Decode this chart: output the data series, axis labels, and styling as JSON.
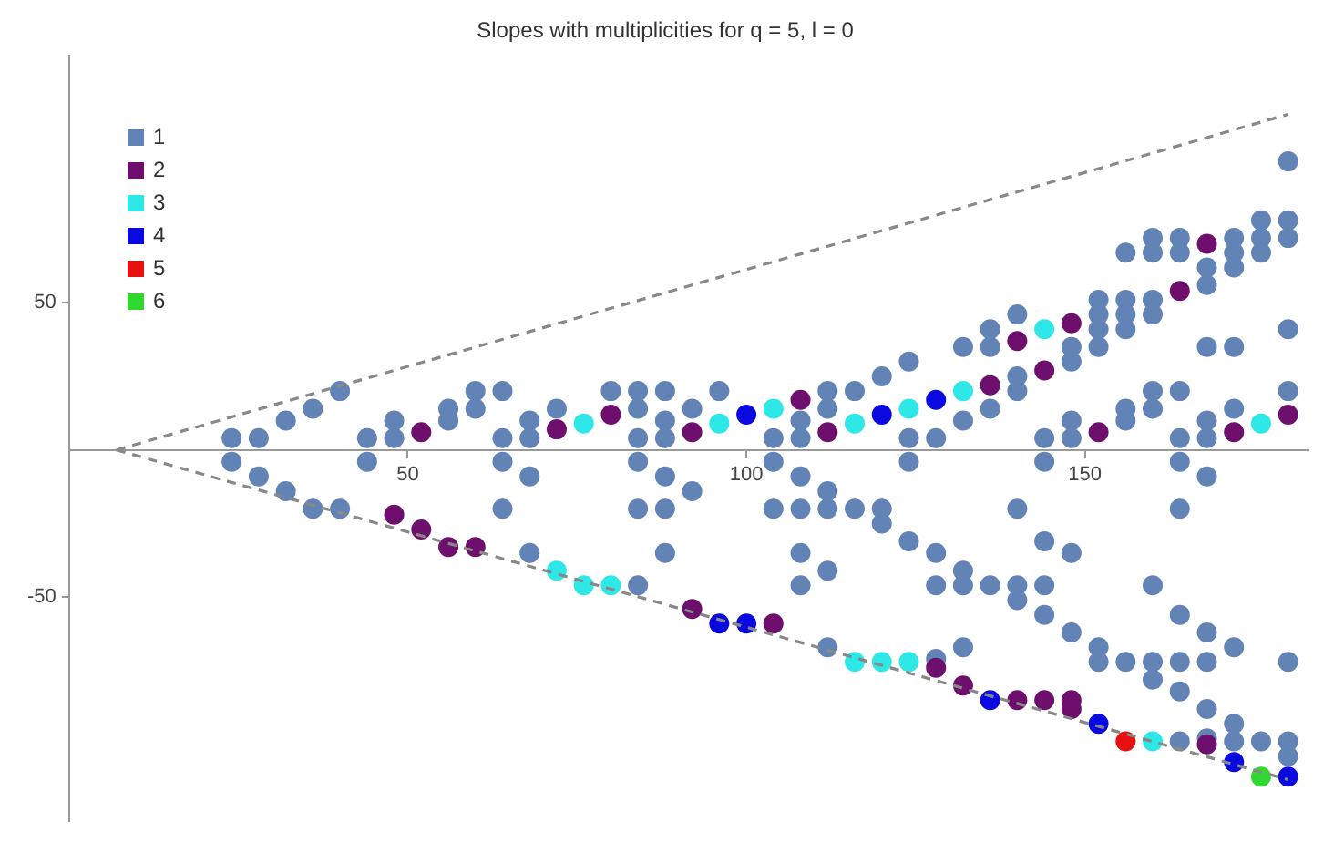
{
  "chart_data": {
    "type": "scatter",
    "title": "Slopes with multiplicities for q = 5, l = 0",
    "xlim": [
      0,
      183
    ],
    "xticks": [
      50,
      100,
      150
    ],
    "ylim": [
      -126,
      134
    ],
    "yticks": [
      -50,
      50
    ],
    "grid": false,
    "legend": "top left",
    "marker": "circle",
    "series": [
      {
        "name": "1",
        "color": "#6283b5",
        "x": [
          24,
          24,
          28,
          28,
          32,
          32,
          36,
          36,
          40,
          40,
          44,
          44,
          48,
          48,
          56,
          56,
          60,
          60,
          64,
          64,
          64,
          64,
          68,
          68,
          68,
          68,
          72,
          80,
          84,
          84,
          84,
          84,
          84,
          84,
          88,
          88,
          88,
          88,
          88,
          88,
          92,
          92,
          96,
          104,
          104,
          104,
          108,
          108,
          108,
          108,
          108,
          108,
          112,
          112,
          112,
          112,
          112,
          112,
          116,
          116,
          120,
          120,
          120,
          124,
          124,
          124,
          124,
          128,
          128,
          128,
          128,
          132,
          132,
          132,
          132,
          132,
          136,
          136,
          136,
          136,
          140,
          140,
          140,
          140,
          140,
          140,
          144,
          144,
          144,
          144,
          144,
          148,
          148,
          148,
          148,
          148,
          148,
          152,
          152,
          152,
          152,
          152,
          152,
          156,
          156,
          156,
          156,
          156,
          156,
          156,
          160,
          160,
          160,
          160,
          160,
          160,
          160,
          160,
          160,
          164,
          164,
          164,
          164,
          164,
          164,
          164,
          164,
          164,
          164,
          168,
          168,
          168,
          168,
          168,
          168,
          168,
          168,
          168,
          168,
          172,
          172,
          172,
          172,
          172,
          172,
          172,
          172,
          176,
          176,
          176,
          176,
          180,
          180,
          180,
          180,
          180,
          180,
          180,
          180
        ],
        "values": [
          4,
          -4,
          4,
          -9,
          10,
          -14,
          14,
          -20,
          20,
          -20,
          4,
          -4,
          4,
          10,
          10,
          14,
          14,
          20,
          20,
          4,
          -4,
          -20,
          10,
          4,
          -9,
          -35,
          14,
          20,
          20,
          14,
          4,
          -4,
          -20,
          -46,
          20,
          10,
          4,
          -9,
          -20,
          -35,
          14,
          -14,
          20,
          4,
          -4,
          -20,
          10,
          4,
          -9,
          -20,
          -35,
          -46,
          20,
          14,
          -14,
          -20,
          -41,
          -67,
          20,
          -20,
          25,
          -20,
          -25,
          30,
          4,
          -4,
          -31,
          4,
          -35,
          -46,
          -71,
          10,
          35,
          -41,
          -46,
          -67,
          14,
          35,
          41,
          -46,
          46,
          25,
          20,
          -20,
          -46,
          -51,
          4,
          -4,
          -31,
          -46,
          -56,
          35,
          30,
          10,
          4,
          -35,
          -62,
          51,
          46,
          41,
          35,
          -67,
          -72,
          67,
          51,
          46,
          41,
          14,
          10,
          -72,
          72,
          67,
          51,
          46,
          20,
          14,
          -46,
          -72,
          -78,
          72,
          67,
          20,
          4,
          -4,
          -20,
          -56,
          -72,
          -82,
          -99,
          62,
          56,
          35,
          10,
          4,
          -9,
          -62,
          -72,
          -88,
          -98,
          72,
          67,
          62,
          35,
          14,
          -67,
          -93,
          -99,
          78,
          72,
          67,
          -99,
          98,
          78,
          72,
          41,
          20,
          -72,
          -99,
          -104
        ]
      },
      {
        "name": "2",
        "color": "#6e0f6e",
        "x": [
          48,
          52,
          52,
          56,
          60,
          72,
          80,
          92,
          92,
          104,
          108,
          112,
          128,
          132,
          136,
          140,
          140,
          144,
          144,
          148,
          148,
          148,
          152,
          164,
          168,
          168,
          172,
          180
        ],
        "values": [
          -22,
          6,
          -27,
          -33,
          -33,
          7,
          12,
          6,
          -54,
          -59,
          17,
          6,
          -74,
          -80,
          22,
          37,
          -85,
          27,
          -85,
          43,
          -85,
          -88,
          6,
          54,
          70,
          -100,
          6,
          12
        ]
      },
      {
        "name": "3",
        "color": "#2ee8e8",
        "x": [
          72,
          76,
          76,
          80,
          96,
          104,
          116,
          116,
          120,
          124,
          124,
          132,
          144,
          160,
          176
        ],
        "values": [
          -41,
          9,
          -46,
          -46,
          9,
          14,
          9,
          -72,
          -72,
          14,
          -72,
          20,
          41,
          -99,
          9
        ]
      },
      {
        "name": "4",
        "color": "#0a0ae0",
        "x": [
          96,
          100,
          100,
          120,
          128,
          136,
          152,
          172,
          180
        ],
        "values": [
          -59,
          12,
          -59,
          12,
          17,
          -85,
          -93,
          -106,
          -111
        ]
      },
      {
        "name": "5",
        "color": "#e81010",
        "x": [
          156
        ],
        "values": [
          -99
        ]
      },
      {
        "name": "6",
        "color": "#30d830",
        "x": [
          176
        ],
        "values": [
          -111
        ]
      },
      {
        "type": "line",
        "color": "#888888",
        "line_style": "dashed",
        "marker": "none",
        "x": [
          7,
          180
        ],
        "values": [
          0,
          114
        ]
      },
      {
        "type": "line",
        "color": "#888888",
        "line_style": "dashed",
        "marker": "none",
        "x": [
          7,
          180
        ],
        "values": [
          0,
          -112
        ]
      }
    ]
  }
}
